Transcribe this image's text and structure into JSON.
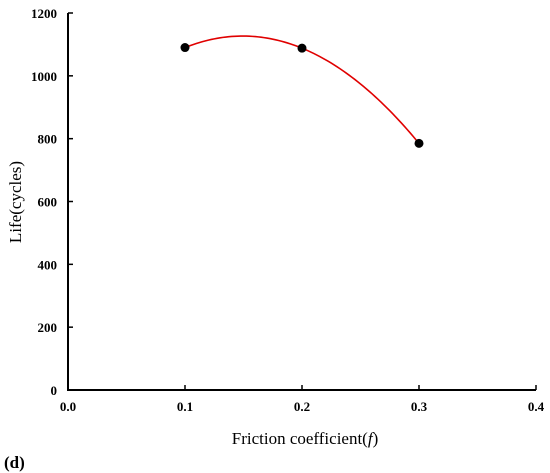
{
  "chart_data": {
    "type": "line",
    "panel_label": "(d)",
    "xlabel": "Friction coefficient(",
    "xlabel_symbol": "f",
    "xlabel_close": ")",
    "ylabel": "Life(cycles)",
    "xlim": [
      0.0,
      0.4
    ],
    "ylim": [
      0,
      1200
    ],
    "x_ticks": [
      "0.0",
      "0.1",
      "0.2",
      "0.3",
      "0.4"
    ],
    "y_ticks": [
      "0",
      "200",
      "400",
      "600",
      "800",
      "1000",
      "1200"
    ],
    "grid": false,
    "smooth": true,
    "series": [
      {
        "line_color": "#e00000",
        "marker_color": "#000000",
        "x": [
          0.1,
          0.2,
          0.3
        ],
        "y": [
          1090,
          1088,
          785
        ]
      }
    ]
  }
}
